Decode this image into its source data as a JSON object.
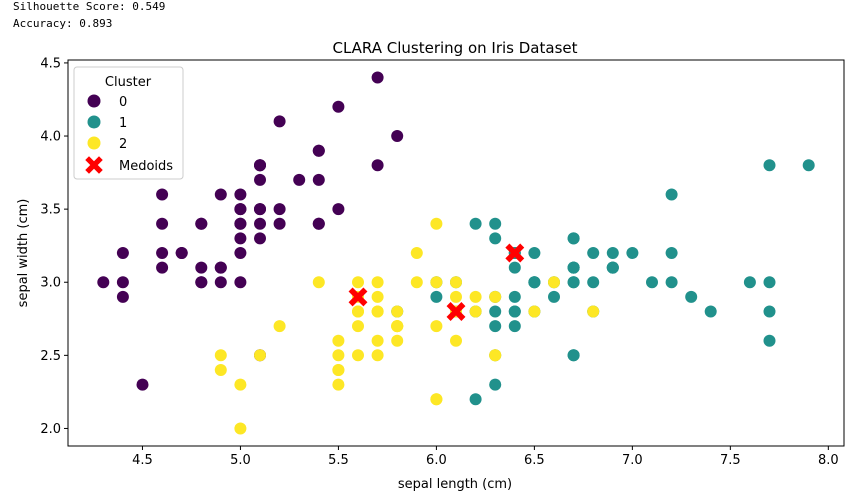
{
  "metrics": {
    "silhouette": "Silhouette Score: 0.549",
    "accuracy": "Accuracy: 0.893"
  },
  "chart_data": {
    "type": "scatter",
    "title": "CLARA Clustering on Iris Dataset",
    "xlabel": "sepal length (cm)",
    "ylabel": "sepal width (cm)",
    "xlim": [
      4.12,
      8.08
    ],
    "ylim": [
      1.88,
      4.52
    ],
    "xticks": [
      "4.5",
      "5.0",
      "5.5",
      "6.0",
      "6.5",
      "7.0",
      "7.5",
      "8.0"
    ],
    "yticks": [
      "2.0",
      "2.5",
      "3.0",
      "3.5",
      "4.0",
      "4.5"
    ],
    "grid": false,
    "legend": {
      "title": "Cluster",
      "placement": "upper left",
      "entries": [
        "0",
        "1",
        "2",
        "Medoids"
      ]
    },
    "colors": {
      "0": "#440154",
      "1": "#21918c",
      "2": "#fde725",
      "medoids": "#ff0000"
    },
    "series": [
      {
        "name": "0",
        "points": [
          [
            5.1,
            3.5
          ],
          [
            4.9,
            3.0
          ],
          [
            4.7,
            3.2
          ],
          [
            4.6,
            3.1
          ],
          [
            5.0,
            3.6
          ],
          [
            5.4,
            3.9
          ],
          [
            4.6,
            3.4
          ],
          [
            5.0,
            3.4
          ],
          [
            4.4,
            2.9
          ],
          [
            4.9,
            3.1
          ],
          [
            5.4,
            3.7
          ],
          [
            4.8,
            3.4
          ],
          [
            4.8,
            3.0
          ],
          [
            4.3,
            3.0
          ],
          [
            5.8,
            4.0
          ],
          [
            5.7,
            4.4
          ],
          [
            5.4,
            3.9
          ],
          [
            5.1,
            3.5
          ],
          [
            5.7,
            3.8
          ],
          [
            5.1,
            3.8
          ],
          [
            5.4,
            3.4
          ],
          [
            5.1,
            3.7
          ],
          [
            4.6,
            3.6
          ],
          [
            5.1,
            3.3
          ],
          [
            4.8,
            3.4
          ],
          [
            5.0,
            3.0
          ],
          [
            5.0,
            3.4
          ],
          [
            5.2,
            3.5
          ],
          [
            5.2,
            3.4
          ],
          [
            4.7,
            3.2
          ],
          [
            4.8,
            3.1
          ],
          [
            5.4,
            3.4
          ],
          [
            5.2,
            4.1
          ],
          [
            5.5,
            4.2
          ],
          [
            4.9,
            3.1
          ],
          [
            5.0,
            3.2
          ],
          [
            5.5,
            3.5
          ],
          [
            4.9,
            3.6
          ],
          [
            4.4,
            3.0
          ],
          [
            5.1,
            3.4
          ],
          [
            5.0,
            3.5
          ],
          [
            4.5,
            2.3
          ],
          [
            4.4,
            3.2
          ],
          [
            5.0,
            3.5
          ],
          [
            5.1,
            3.8
          ],
          [
            4.8,
            3.0
          ],
          [
            5.1,
            3.8
          ],
          [
            4.6,
            3.2
          ],
          [
            5.3,
            3.7
          ],
          [
            5.0,
            3.3
          ],
          [
            5.1,
            2.5
          ]
        ]
      },
      {
        "name": "1",
        "points": [
          [
            7.0,
            3.2
          ],
          [
            6.4,
            3.2
          ],
          [
            6.9,
            3.1
          ],
          [
            6.5,
            2.8
          ],
          [
            6.3,
            3.3
          ],
          [
            6.6,
            2.9
          ],
          [
            6.7,
            3.1
          ],
          [
            6.2,
            2.2
          ],
          [
            6.3,
            2.5
          ],
          [
            6.1,
            2.8
          ],
          [
            6.4,
            2.9
          ],
          [
            6.6,
            3.0
          ],
          [
            6.8,
            2.8
          ],
          [
            6.7,
            3.0
          ],
          [
            6.0,
            2.9
          ],
          [
            6.3,
            2.9
          ],
          [
            6.7,
            3.1
          ],
          [
            6.3,
            2.3
          ],
          [
            6.7,
            2.5
          ],
          [
            7.2,
            3.6
          ],
          [
            6.5,
            3.2
          ],
          [
            6.4,
            2.7
          ],
          [
            6.8,
            3.0
          ],
          [
            5.8,
            2.8
          ],
          [
            6.4,
            3.2
          ],
          [
            6.5,
            3.0
          ],
          [
            7.7,
            3.8
          ],
          [
            7.7,
            2.6
          ],
          [
            6.9,
            3.2
          ],
          [
            7.7,
            2.8
          ],
          [
            6.3,
            2.7
          ],
          [
            6.7,
            3.3
          ],
          [
            7.2,
            3.2
          ],
          [
            6.2,
            2.8
          ],
          [
            6.1,
            3.0
          ],
          [
            6.4,
            2.8
          ],
          [
            7.2,
            3.0
          ],
          [
            7.4,
            2.8
          ],
          [
            7.9,
            3.8
          ],
          [
            6.4,
            2.8
          ],
          [
            6.3,
            2.8
          ],
          [
            7.7,
            3.0
          ],
          [
            6.3,
            3.4
          ],
          [
            6.4,
            3.1
          ],
          [
            6.0,
            3.0
          ],
          [
            6.9,
            3.1
          ],
          [
            6.7,
            3.1
          ],
          [
            6.9,
            3.1
          ],
          [
            6.8,
            3.2
          ],
          [
            6.7,
            3.3
          ],
          [
            6.7,
            3.0
          ],
          [
            6.5,
            3.0
          ],
          [
            6.2,
            3.4
          ],
          [
            7.1,
            3.0
          ],
          [
            7.6,
            3.0
          ],
          [
            7.3,
            2.9
          ],
          [
            6.7,
            2.5
          ],
          [
            6.5,
            3.0
          ]
        ]
      },
      {
        "name": "2",
        "points": [
          [
            5.5,
            2.3
          ],
          [
            5.7,
            2.8
          ],
          [
            4.9,
            2.4
          ],
          [
            5.2,
            2.7
          ],
          [
            5.0,
            2.0
          ],
          [
            5.9,
            3.0
          ],
          [
            6.0,
            2.2
          ],
          [
            6.1,
            2.9
          ],
          [
            5.6,
            2.9
          ],
          [
            5.8,
            2.7
          ],
          [
            5.6,
            2.5
          ],
          [
            5.9,
            3.2
          ],
          [
            6.1,
            2.8
          ],
          [
            5.7,
            2.6
          ],
          [
            5.5,
            2.4
          ],
          [
            5.5,
            2.4
          ],
          [
            5.8,
            2.7
          ],
          [
            6.0,
            2.7
          ],
          [
            5.4,
            3.0
          ],
          [
            6.0,
            3.4
          ],
          [
            5.6,
            3.0
          ],
          [
            5.5,
            2.5
          ],
          [
            5.5,
            2.6
          ],
          [
            6.1,
            3.0
          ],
          [
            5.8,
            2.6
          ],
          [
            5.0,
            2.3
          ],
          [
            5.6,
            2.7
          ],
          [
            5.7,
            3.0
          ],
          [
            5.7,
            2.9
          ],
          [
            6.2,
            2.9
          ],
          [
            5.1,
            2.5
          ],
          [
            5.7,
            2.8
          ],
          [
            5.8,
            2.7
          ],
          [
            4.9,
            2.5
          ],
          [
            5.7,
            2.5
          ],
          [
            5.8,
            2.8
          ],
          [
            6.0,
            2.2
          ],
          [
            5.6,
            2.8
          ],
          [
            6.3,
            2.5
          ],
          [
            6.1,
            2.6
          ],
          [
            6.2,
            2.8
          ],
          [
            6.0,
            3.0
          ],
          [
            5.8,
            2.7
          ],
          [
            6.3,
            2.5
          ],
          [
            6.5,
            2.8
          ],
          [
            6.6,
            3.0
          ],
          [
            6.8,
            2.8
          ],
          [
            6.3,
            2.9
          ],
          [
            5.6,
            2.8
          ]
        ]
      }
    ],
    "medoids": [
      [
        5.6,
        2.9
      ],
      [
        6.1,
        2.8
      ],
      [
        6.4,
        3.2
      ]
    ]
  }
}
